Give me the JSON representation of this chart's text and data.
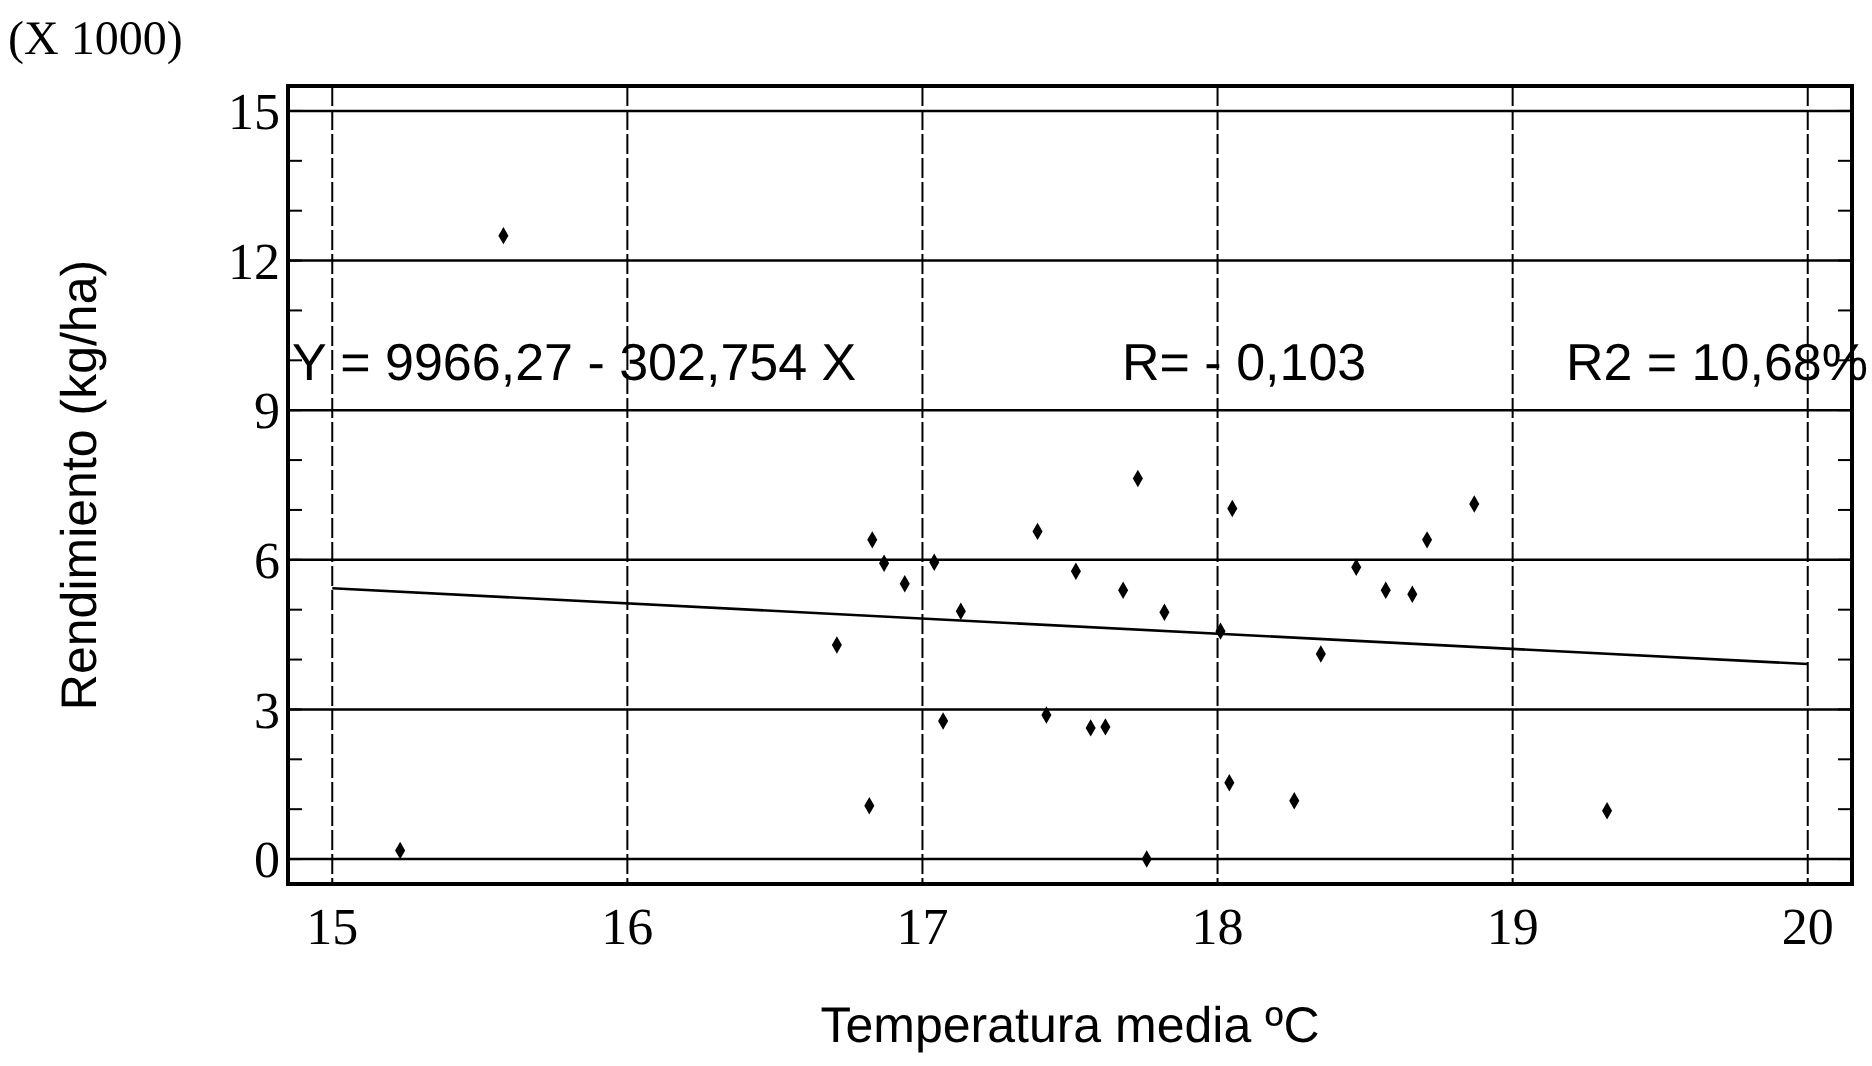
{
  "chart_data": {
    "type": "scatter",
    "xlabel": "Temperatura media ºC",
    "ylabel": "Rendimiento (kg/ha)",
    "annotations": [
      "(X 1000)",
      "Y  = 9966,27 - 302,754 X",
      "R= - 0,103",
      "R2 = 10,68%"
    ],
    "xlim": [
      14.85,
      20.15
    ],
    "xticks": [
      15,
      16,
      17,
      18,
      19,
      20
    ],
    "ylim": [
      -0.5,
      15.5
    ],
    "yticks": [
      0,
      {
        "value": 1,
        "label": null
      },
      {
        "value": 2,
        "label": null
      },
      3,
      {
        "value": 4,
        "label": null
      },
      {
        "value": 5,
        "label": null
      },
      6,
      {
        "value": 7,
        "label": null
      },
      {
        "value": 8,
        "label": null
      },
      9,
      {
        "value": 10,
        "label": null
      },
      {
        "value": 11,
        "label": null
      },
      12,
      {
        "value": 13,
        "label": null
      },
      {
        "value": 14,
        "label": null
      },
      15
    ],
    "grid": true,
    "marker": "diamond",
    "series": [
      {
        "color": "#000000",
        "x": [
          15.23,
          15.58,
          16.71,
          16.82,
          16.83,
          16.87,
          16.94,
          17.04,
          17.07,
          17.13,
          17.39,
          17.42,
          17.52,
          17.57,
          17.62,
          17.68,
          17.73,
          17.76,
          17.82,
          18.01,
          18.04,
          18.05,
          18.26,
          18.35,
          18.47,
          18.57,
          18.66,
          18.71,
          18.87,
          19.32
        ],
        "values": [
          0.17,
          12.5,
          4.29,
          1.07,
          6.4,
          5.93,
          5.52,
          5.95,
          2.77,
          4.97,
          6.57,
          2.89,
          5.77,
          2.63,
          2.65,
          5.39,
          7.63,
          0,
          4.95,
          4.57,
          1.53,
          7.03,
          1.17,
          4.11,
          5.85,
          5.39,
          5.31,
          6.4,
          7.12,
          0.97
        ]
      },
      {
        "type": "line",
        "marker": "none",
        "color": "#000000",
        "x": [
          15,
          20
        ],
        "values": [
          5.43,
          3.91
        ]
      }
    ]
  }
}
